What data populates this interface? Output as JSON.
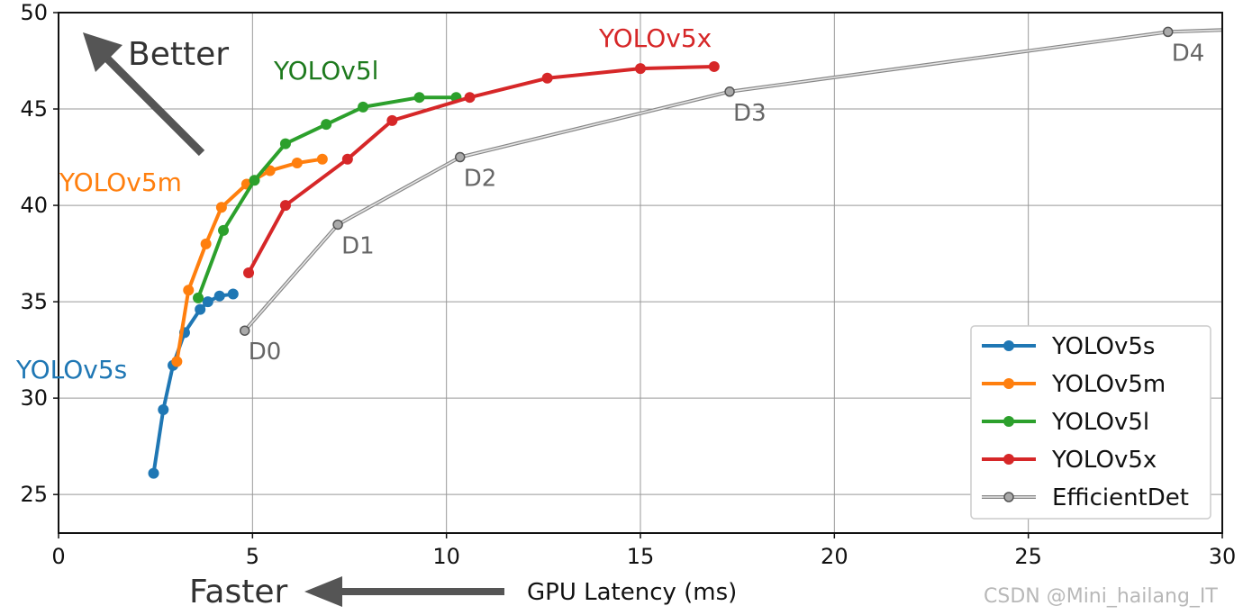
{
  "chart_data": {
    "type": "line",
    "xlabel": "GPU Latency (ms)",
    "ylabel": "",
    "xlim": [
      0,
      30
    ],
    "ylim": [
      23,
      50
    ],
    "xticks": [
      0,
      5,
      10,
      15,
      20,
      25,
      30
    ],
    "yticks": [
      25,
      30,
      35,
      40,
      45,
      50
    ],
    "grid": true,
    "legend_position": "lower-right",
    "series": [
      {
        "name": "YOLOv5s",
        "color": "#1f77b4",
        "x": [
          2.45,
          2.7,
          2.95,
          3.25,
          3.65,
          3.85,
          4.15,
          4.5
        ],
        "y": [
          26.1,
          29.4,
          31.7,
          33.4,
          34.6,
          35.0,
          35.3,
          35.4
        ]
      },
      {
        "name": "YOLOv5m",
        "color": "#ff7f0e",
        "x": [
          3.05,
          3.35,
          3.8,
          4.2,
          4.85,
          5.45,
          6.15,
          6.8
        ],
        "y": [
          31.9,
          35.6,
          38.0,
          39.9,
          41.1,
          41.8,
          42.2,
          42.4
        ]
      },
      {
        "name": "YOLOv5l",
        "color": "#2ca02c",
        "x": [
          3.6,
          4.25,
          5.05,
          5.85,
          6.9,
          7.85,
          9.3,
          10.25
        ],
        "y": [
          35.2,
          38.7,
          41.3,
          43.2,
          44.2,
          45.1,
          45.6,
          45.6
        ]
      },
      {
        "name": "YOLOv5x",
        "color": "#d62728",
        "x": [
          4.9,
          5.85,
          7.45,
          8.6,
          10.6,
          12.6,
          15.0,
          16.9
        ],
        "y": [
          36.5,
          40.0,
          42.4,
          44.4,
          45.6,
          46.6,
          47.1,
          47.2
        ]
      },
      {
        "name": "EfficientDet",
        "color": "#999999",
        "x": [
          4.8,
          7.2,
          10.35,
          17.3,
          28.6,
          30.0
        ],
        "y": [
          33.5,
          39.0,
          42.5,
          45.9,
          49.0,
          49.1
        ],
        "point_labels": [
          "D0",
          "D1",
          "D2",
          "D3",
          "D4",
          ""
        ]
      }
    ],
    "annotations": {
      "better": "Better",
      "faster": "Faster",
      "label_yolov5s": "YOLOv5s",
      "label_yolov5m": "YOLOv5m",
      "label_yolov5l": "YOLOv5l",
      "label_yolov5x": "YOLOv5x"
    }
  },
  "watermark": "CSDN @Mini_hailang_IT"
}
